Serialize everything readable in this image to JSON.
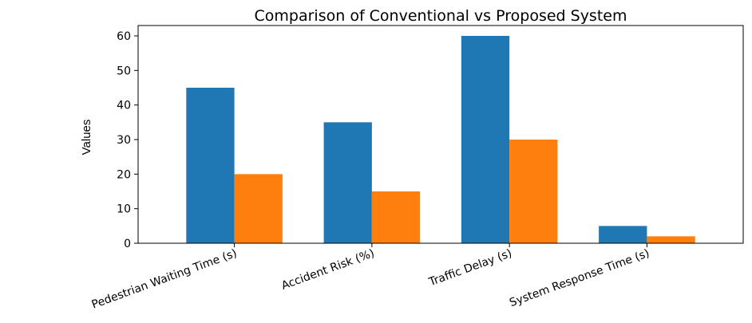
{
  "chart_data": {
    "type": "bar",
    "title": "Comparison of Conventional vs Proposed System",
    "xlabel": "",
    "ylabel": "Values",
    "categories": [
      "Pedestrian Waiting Time (s)",
      "Accident Risk (%)",
      "Traffic Delay (s)",
      "System Response Time (s)"
    ],
    "series": [
      {
        "values": [
          45,
          35,
          60,
          5
        ],
        "color": "#1f77b4"
      },
      {
        "values": [
          20,
          15,
          30,
          2
        ],
        "color": "#ff7f0e"
      }
    ],
    "ylim": [
      0,
      63
    ],
    "yticks": [
      0,
      10,
      20,
      30,
      40,
      50,
      60
    ],
    "grid": false,
    "legend": "none"
  }
}
